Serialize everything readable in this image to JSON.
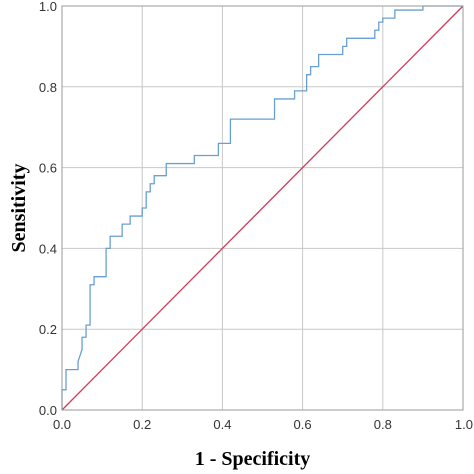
{
  "colors": {
    "roc": "#6a9fd1",
    "reference": "#cc3b5c",
    "grid": "#c8c8c8",
    "frame": "#9a9a9a",
    "background": "#ffffff"
  },
  "chart_data": {
    "type": "line",
    "title": "",
    "xlabel": "1 - Specificity",
    "ylabel": "Sensitivity",
    "xlim": [
      0,
      1
    ],
    "ylim": [
      0,
      1
    ],
    "xticks": [
      "0.0",
      "0.2",
      "0.4",
      "0.6",
      "0.8",
      "1.0"
    ],
    "yticks": [
      "0.0",
      "0.2",
      "0.4",
      "0.6",
      "0.8",
      "1.0"
    ],
    "grid": true,
    "legend": "none",
    "series": [
      {
        "id": "roc",
        "points": [
          [
            0.0,
            0.0
          ],
          [
            0.0,
            0.05
          ],
          [
            0.01,
            0.05
          ],
          [
            0.01,
            0.1
          ],
          [
            0.04,
            0.1
          ],
          [
            0.04,
            0.12
          ],
          [
            0.05,
            0.15
          ],
          [
            0.05,
            0.18
          ],
          [
            0.06,
            0.18
          ],
          [
            0.06,
            0.21
          ],
          [
            0.07,
            0.21
          ],
          [
            0.07,
            0.25
          ],
          [
            0.07,
            0.31
          ],
          [
            0.08,
            0.31
          ],
          [
            0.08,
            0.33
          ],
          [
            0.11,
            0.33
          ],
          [
            0.11,
            0.4
          ],
          [
            0.12,
            0.4
          ],
          [
            0.12,
            0.43
          ],
          [
            0.15,
            0.43
          ],
          [
            0.15,
            0.46
          ],
          [
            0.17,
            0.46
          ],
          [
            0.17,
            0.48
          ],
          [
            0.2,
            0.48
          ],
          [
            0.2,
            0.5
          ],
          [
            0.21,
            0.5
          ],
          [
            0.21,
            0.54
          ],
          [
            0.22,
            0.54
          ],
          [
            0.22,
            0.56
          ],
          [
            0.23,
            0.56
          ],
          [
            0.23,
            0.58
          ],
          [
            0.26,
            0.58
          ],
          [
            0.26,
            0.61
          ],
          [
            0.33,
            0.61
          ],
          [
            0.33,
            0.63
          ],
          [
            0.39,
            0.63
          ],
          [
            0.39,
            0.66
          ],
          [
            0.42,
            0.66
          ],
          [
            0.42,
            0.72
          ],
          [
            0.53,
            0.72
          ],
          [
            0.53,
            0.77
          ],
          [
            0.58,
            0.77
          ],
          [
            0.58,
            0.79
          ],
          [
            0.61,
            0.79
          ],
          [
            0.61,
            0.83
          ],
          [
            0.62,
            0.83
          ],
          [
            0.62,
            0.85
          ],
          [
            0.64,
            0.85
          ],
          [
            0.64,
            0.88
          ],
          [
            0.7,
            0.88
          ],
          [
            0.7,
            0.9
          ],
          [
            0.71,
            0.9
          ],
          [
            0.71,
            0.92
          ],
          [
            0.78,
            0.92
          ],
          [
            0.78,
            0.94
          ],
          [
            0.79,
            0.94
          ],
          [
            0.79,
            0.96
          ],
          [
            0.8,
            0.96
          ],
          [
            0.8,
            0.97
          ],
          [
            0.83,
            0.97
          ],
          [
            0.83,
            0.99
          ],
          [
            0.9,
            0.99
          ],
          [
            0.9,
            1.0
          ],
          [
            1.0,
            1.0
          ]
        ]
      },
      {
        "id": "reference",
        "points": [
          [
            0.0,
            0.0
          ],
          [
            1.0,
            1.0
          ]
        ]
      }
    ]
  }
}
